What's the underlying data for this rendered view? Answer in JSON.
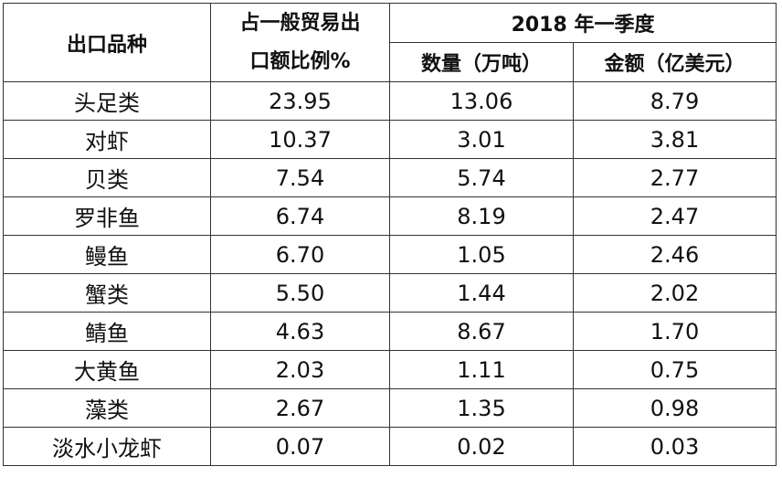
{
  "table": {
    "header": {
      "variety": "出口品种",
      "share_lines": [
        "占一般贸易出",
        "口额比例%"
      ],
      "period": "2018 年一季度",
      "quantity": "数量（万吨）",
      "amount": "金额（亿美元）"
    },
    "rows": [
      [
        "头足类",
        "23.95",
        "13.06",
        "8.79"
      ],
      [
        "对虾",
        "10.37",
        "3.01",
        "3.81"
      ],
      [
        "贝类",
        "7.54",
        "5.74",
        "2.77"
      ],
      [
        "罗非鱼",
        "6.74",
        "8.19",
        "2.47"
      ],
      [
        "鳗鱼",
        "6.70",
        "1.05",
        "2.46"
      ],
      [
        "蟹类",
        "5.50",
        "1.44",
        "2.02"
      ],
      [
        "鲭鱼",
        "4.63",
        "8.67",
        "1.70"
      ],
      [
        "大黄鱼",
        "2.03",
        "1.11",
        "0.75"
      ],
      [
        "藻类",
        "2.67",
        "1.35",
        "0.98"
      ],
      [
        "淡水小龙虾",
        "0.07",
        "0.02",
        "0.03"
      ]
    ]
  }
}
